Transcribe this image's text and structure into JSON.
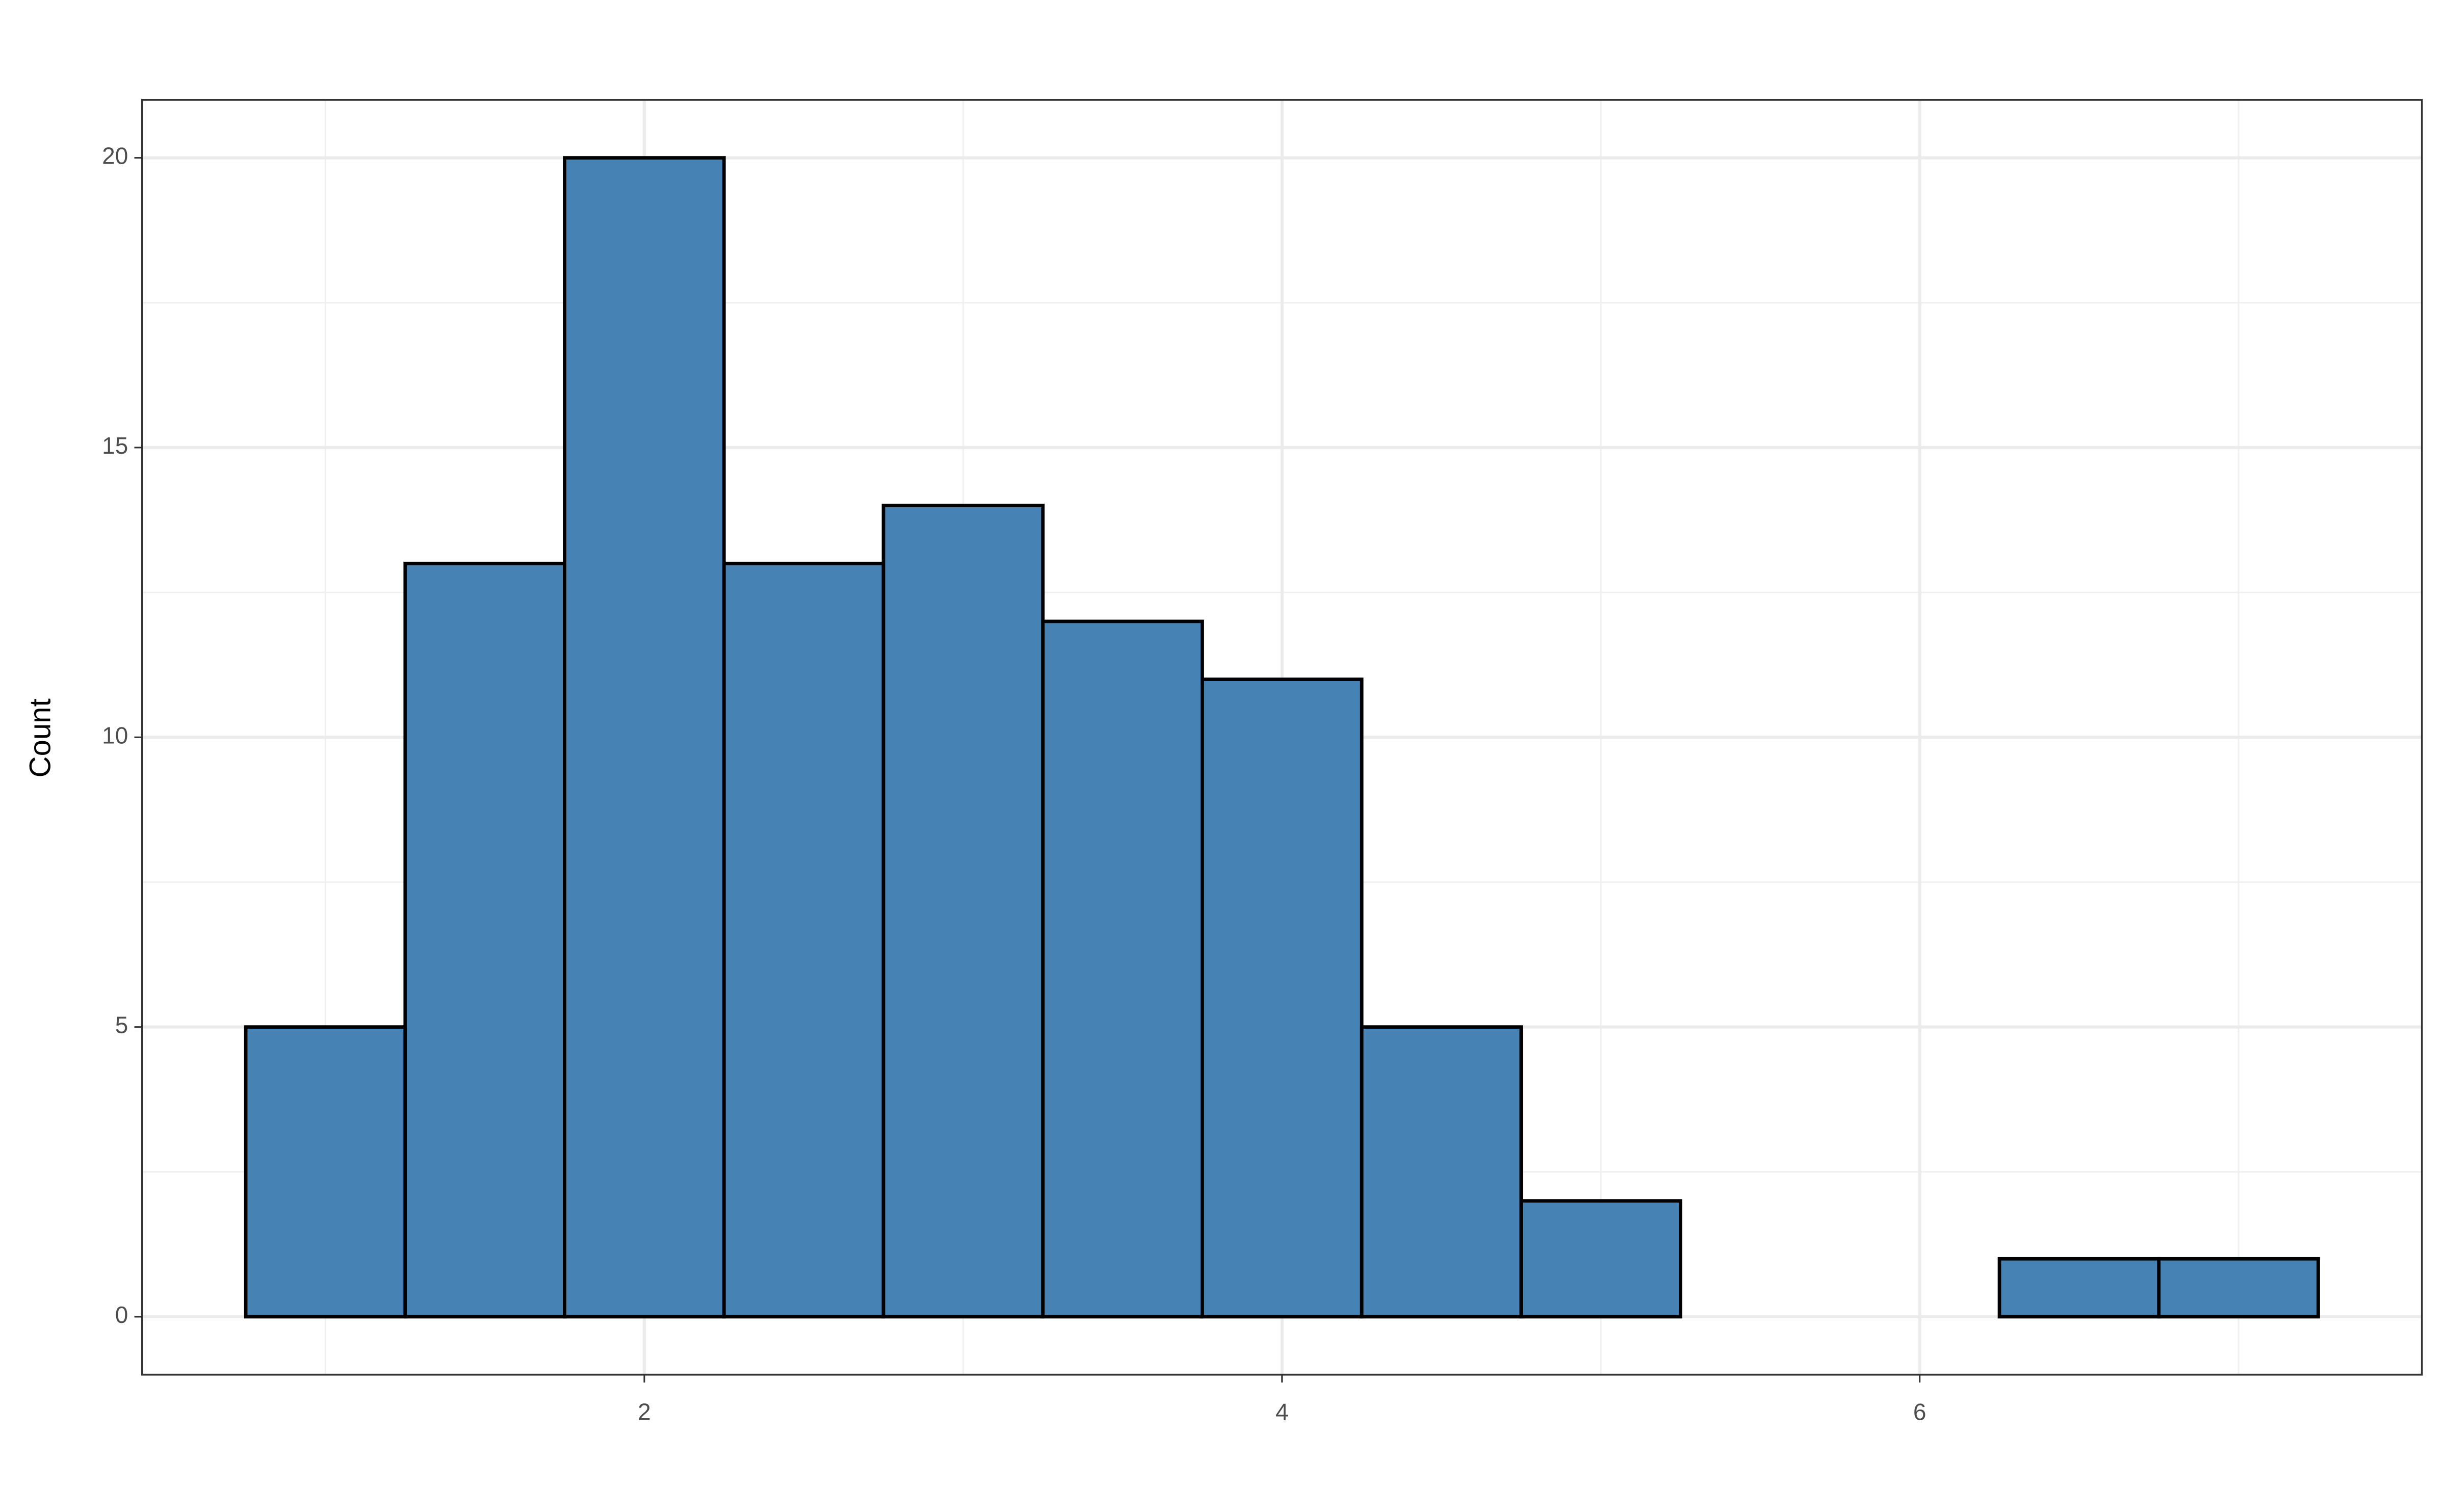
{
  "chart_data": {
    "type": "histogram",
    "y_label": "Count",
    "bins": [
      0.75,
      1.25,
      1.75,
      2.25,
      2.75,
      3.25,
      3.75,
      4.25,
      4.75,
      5.25,
      5.75,
      6.25,
      6.75,
      7.25
    ],
    "counts": [
      5,
      13,
      20,
      13,
      14,
      12,
      11,
      5,
      2,
      0,
      0,
      1,
      1
    ],
    "color": "#4682b4",
    "edge_color": "#000000",
    "xlim": [
      0.425,
      7.575
    ],
    "xticks": [
      2,
      4,
      6
    ],
    "xminor": [
      1,
      3,
      5,
      7
    ],
    "ylim": [
      -1,
      21
    ],
    "yticks": [
      0,
      5,
      10,
      15,
      20
    ],
    "yminor": [
      2.5,
      7.5,
      12.5,
      17.5
    ],
    "grid": true
  }
}
